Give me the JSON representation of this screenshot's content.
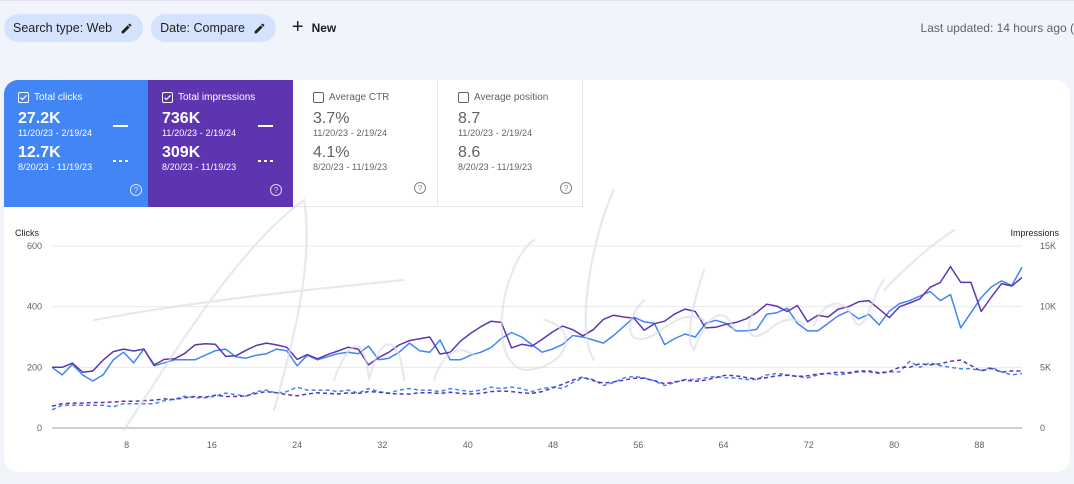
{
  "filters": {
    "search_type": "Search type: Web",
    "date": "Date: Compare",
    "new_label": "New",
    "last_updated": "Last updated: 14 hours ago ("
  },
  "metrics": [
    {
      "id": "clicks",
      "label": "Total clicks",
      "checked": true,
      "current": "27.2K",
      "current_range": "11/20/23 - 2/19/24",
      "previous": "12.7K",
      "previous_range": "8/20/23 - 11/19/23",
      "color": "#4285f4"
    },
    {
      "id": "impressions",
      "label": "Total impressions",
      "checked": true,
      "current": "736K",
      "current_range": "11/20/23 - 2/19/24",
      "previous": "309K",
      "previous_range": "8/20/23 - 11/19/23",
      "color": "#5e35b1"
    },
    {
      "id": "ctr",
      "label": "Average CTR",
      "checked": false,
      "current": "3.7%",
      "current_range": "11/20/23 - 2/19/24",
      "previous": "4.1%",
      "previous_range": "8/20/23 - 11/19/23"
    },
    {
      "id": "position",
      "label": "Average position",
      "checked": false,
      "current": "8.7",
      "current_range": "11/20/23 - 2/19/24",
      "previous": "8.6",
      "previous_range": "8/20/23 - 11/19/23"
    }
  ],
  "watermark": "Amr Elshenawy",
  "chart_data": {
    "type": "line",
    "left_axis": {
      "label": "Clicks",
      "ticks": [
        0,
        200,
        400,
        600
      ],
      "range": [
        0,
        600
      ]
    },
    "right_axis": {
      "label": "Impressions",
      "ticks": [
        "0",
        "5K",
        "10K",
        "15K"
      ],
      "range": [
        0,
        15000
      ]
    },
    "x_ticks": [
      8,
      16,
      24,
      32,
      40,
      48,
      56,
      64,
      72,
      80,
      88
    ],
    "x_range": [
      1,
      92
    ],
    "series": [
      {
        "axis": "left",
        "style": "solid",
        "color": "#4285f4",
        "values": [
          200,
          175,
          210,
          175,
          155,
          175,
          225,
          250,
          215,
          260,
          205,
          215,
          225,
          225,
          225,
          240,
          255,
          260,
          235,
          230,
          240,
          245,
          260,
          255,
          205,
          240,
          225,
          235,
          245,
          250,
          245,
          270,
          225,
          230,
          250,
          280,
          255,
          250,
          290,
          225,
          225,
          240,
          250,
          265,
          295,
          315,
          300,
          275,
          250,
          260,
          275,
          305,
          300,
          290,
          280,
          305,
          335,
          365,
          350,
          345,
          275,
          295,
          310,
          300,
          345,
          355,
          345,
          320,
          320,
          325,
          375,
          380,
          395,
          345,
          320,
          320,
          345,
          370,
          385,
          360,
          375,
          340,
          385,
          410,
          420,
          435,
          450,
          420,
          440,
          330,
          380,
          430,
          465,
          485,
          470,
          530
        ]
      },
      {
        "axis": "right",
        "style": "solid",
        "color": "#5e35b1",
        "values": [
          5000,
          5000,
          5350,
          4600,
          4700,
          5600,
          6300,
          6500,
          6350,
          6500,
          5200,
          5650,
          5700,
          6150,
          6850,
          6950,
          6900,
          5900,
          5950,
          6400,
          6800,
          7000,
          6850,
          6650,
          5650,
          6050,
          5700,
          6050,
          6350,
          6650,
          6500,
          5200,
          5800,
          6250,
          6850,
          7200,
          7350,
          7500,
          6100,
          6250,
          7150,
          7800,
          8350,
          8800,
          8700,
          6600,
          6900,
          6750,
          7300,
          7900,
          8400,
          8100,
          7600,
          8100,
          8950,
          9300,
          9150,
          9050,
          8050,
          8600,
          8800,
          9400,
          9800,
          9600,
          8250,
          8300,
          8550,
          8700,
          9000,
          9500,
          10200,
          10050,
          9600,
          10100,
          8750,
          9300,
          9150,
          9800,
          10000,
          10400,
          10500,
          9800,
          9100,
          10000,
          10300,
          10650,
          11600,
          12000,
          13300,
          12000,
          12000,
          9600,
          10800,
          11900,
          11700,
          12400
        ]
      },
      {
        "axis": "left",
        "style": "dashed",
        "color": "#4285f4",
        "values": [
          60,
          75,
          75,
          75,
          75,
          75,
          70,
          80,
          80,
          80,
          80,
          90,
          95,
          105,
          100,
          100,
          105,
          115,
          110,
          105,
          120,
          125,
          115,
          120,
          135,
          125,
          125,
          125,
          120,
          125,
          115,
          130,
          120,
          115,
          125,
          130,
          125,
          125,
          120,
          130,
          125,
          120,
          125,
          135,
          130,
          135,
          130,
          120,
          130,
          135,
          130,
          150,
          165,
          160,
          140,
          150,
          165,
          170,
          165,
          155,
          140,
          150,
          160,
          160,
          165,
          170,
          165,
          165,
          160,
          160,
          175,
          180,
          175,
          170,
          165,
          175,
          180,
          175,
          180,
          185,
          185,
          180,
          185,
          185,
          220,
          200,
          215,
          205,
          200,
          195,
          195,
          190,
          200,
          185,
          175,
          180
        ]
      },
      {
        "axis": "right",
        "style": "dashed",
        "color": "#5e35b1",
        "values": [
          1800,
          2000,
          2050,
          2050,
          2100,
          2100,
          2150,
          2200,
          2200,
          2250,
          2300,
          2400,
          2350,
          2500,
          2600,
          2550,
          2700,
          2600,
          2600,
          2650,
          2850,
          3000,
          2900,
          2750,
          2650,
          2800,
          2900,
          2850,
          2800,
          2900,
          2850,
          3000,
          2950,
          2850,
          2800,
          2800,
          2900,
          2900,
          2850,
          2950,
          2850,
          2800,
          2850,
          3000,
          3050,
          3000,
          2900,
          2850,
          3000,
          3300,
          3600,
          3950,
          4200,
          3900,
          3700,
          3800,
          3950,
          4100,
          4100,
          3900,
          3650,
          3800,
          3950,
          3850,
          3950,
          4150,
          4350,
          4300,
          4150,
          4050,
          4150,
          4300,
          4350,
          4250,
          4300,
          4450,
          4500,
          4600,
          4550,
          4700,
          4700,
          4550,
          4650,
          5000,
          5000,
          5300,
          5200,
          5300,
          5500,
          5600,
          5150,
          4700,
          4900,
          4600,
          4700,
          4700
        ]
      }
    ]
  }
}
